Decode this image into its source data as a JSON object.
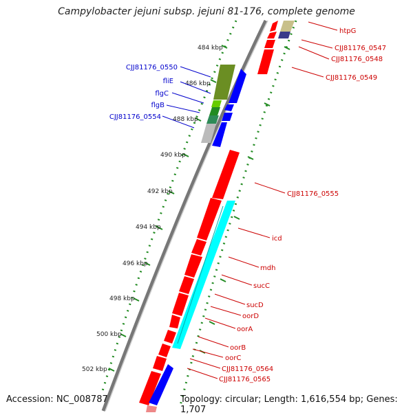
{
  "title": "Campylobacter jejuni subsp. jejuni 81-176, complete genome",
  "accession": "Accession: NC_008787",
  "topology": "Topology: circular; Length: 1,616,554 bp; Genes: 1,707",
  "colors": {
    "forward_gene": "#ff0000",
    "reverse_gene": "#0000ff",
    "backbone": "#808080",
    "tick_green": "#228b22",
    "label_blue": "#0000cc",
    "label_red": "#cc0000"
  },
  "kbp_ticks": [
    "484 kbp",
    "486 kbp",
    "488 kbp",
    "490 kbp",
    "492 kbp",
    "494 kbp",
    "496 kbp",
    "498 kbp",
    "500 kbp",
    "502 kbp"
  ],
  "left_gene_labels": [
    "CJJ81176_0550",
    "fliE",
    "flgC",
    "flgB",
    "CJJ81176_0554"
  ],
  "right_gene_labels": [
    "htpG",
    "CJJ81176_0547",
    "CJJ81176_0548",
    "CJJ81176_0549",
    "CJJ81176_0555",
    "icd",
    "mdh",
    "sucC",
    "sucD",
    "oorD",
    "oorA",
    "oorB",
    "oorC",
    "CJJ81176_0564",
    "CJJ81176_0565"
  ]
}
